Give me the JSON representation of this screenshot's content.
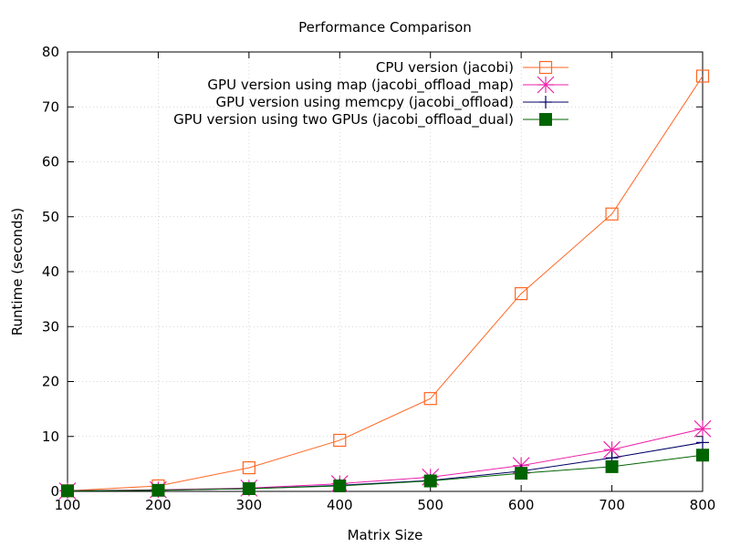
{
  "chart_data": {
    "type": "line",
    "title": "Performance Comparison",
    "xlabel": "Matrix Size",
    "ylabel": "Runtime (seconds)",
    "x": [
      100,
      200,
      300,
      400,
      500,
      600,
      700,
      800
    ],
    "xlim": [
      100,
      800
    ],
    "ylim": [
      0,
      80
    ],
    "xticks": [
      100,
      200,
      300,
      400,
      500,
      600,
      700,
      800
    ],
    "yticks": [
      0,
      10,
      20,
      30,
      40,
      50,
      60,
      70,
      80
    ],
    "grid": true,
    "legend_position": "top-right",
    "series": [
      {
        "name": "CPU version (jacobi)",
        "marker": "open-square",
        "color": "#ff6622",
        "values": [
          0.1,
          1.0,
          4.3,
          9.3,
          16.9,
          36.0,
          50.5,
          75.6
        ]
      },
      {
        "name": "GPU version using map (jacobi_offload_map)",
        "marker": "asterisk",
        "color": "#ee22aa",
        "values": [
          0.1,
          0.3,
          0.6,
          1.4,
          2.6,
          4.7,
          7.6,
          11.4
        ]
      },
      {
        "name": "GPU version using memcpy (jacobi_offload)",
        "marker": "plus",
        "color": "#000066",
        "values": [
          0.1,
          0.2,
          0.5,
          1.1,
          2.0,
          3.7,
          6.1,
          8.9
        ]
      },
      {
        "name": "GPU version using two GPUs (jacobi_offload_dual)",
        "marker": "filled-square",
        "color": "#006400",
        "values": [
          0.1,
          0.2,
          0.5,
          1.0,
          1.9,
          3.3,
          4.5,
          6.6
        ]
      }
    ]
  }
}
